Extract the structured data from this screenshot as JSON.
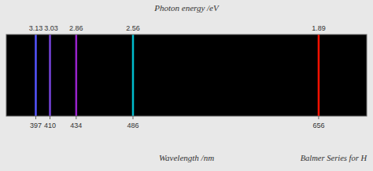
{
  "chart_data": {
    "type": "spectrum",
    "title": "Photon energy /eV",
    "x_label": "Wavelength /nm",
    "annotation": "Balmer Series for H",
    "x": [
      397,
      410,
      434,
      486,
      656
    ],
    "values": [
      3.13,
      3.03,
      2.86,
      2.56,
      1.89
    ],
    "colors": [
      "#5555ff",
      "#7744dd",
      "#9922cc",
      "#00bbcc",
      "#ff1100"
    ],
    "xlim": [
      370,
      700
    ],
    "xticks": [
      397,
      410,
      434,
      486,
      656
    ],
    "data_labels": true,
    "grid": false
  }
}
